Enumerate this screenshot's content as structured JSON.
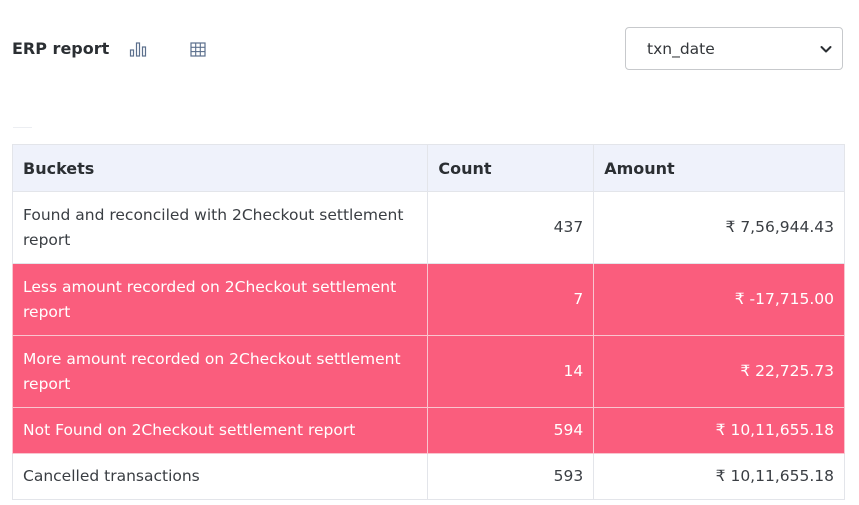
{
  "header": {
    "title": "ERP report",
    "date_field": {
      "selected": "txn_date"
    }
  },
  "table": {
    "columns": [
      "Buckets",
      "Count",
      "Amount"
    ],
    "rows": [
      {
        "bucket": "Found and reconciled with 2Checkout settlement report",
        "count": "437",
        "amount": "₹ 7,56,944.43",
        "highlighted": false
      },
      {
        "bucket": "Less amount recorded on 2Checkout settlement report",
        "count": "7",
        "amount": "₹ -17,715.00",
        "highlighted": true
      },
      {
        "bucket": "More amount recorded on 2Checkout settlement report",
        "count": "14",
        "amount": "₹ 22,725.73",
        "highlighted": true
      },
      {
        "bucket": "Not Found on 2Checkout settlement report",
        "count": "594",
        "amount": "₹ 10,11,655.18",
        "highlighted": true
      },
      {
        "bucket": "Cancelled transactions",
        "count": "593",
        "amount": "₹ 10,11,655.18",
        "highlighted": false
      }
    ]
  },
  "icons": {
    "chart_view": "bar-chart-icon",
    "table_view": "table-grid-icon",
    "dropdown": "chevron-down-icon"
  },
  "colors": {
    "highlight_row": "#fa5d7d",
    "header_bg": "#eff2fb"
  }
}
